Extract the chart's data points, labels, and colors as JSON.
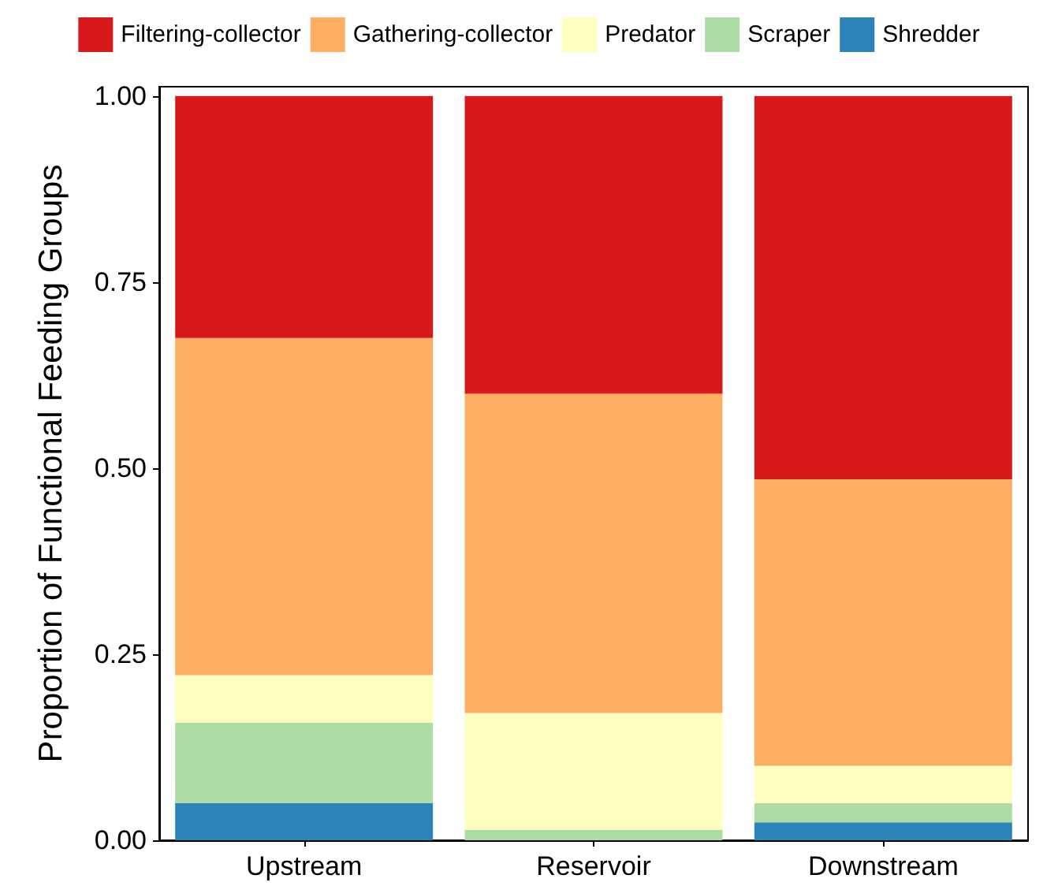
{
  "chart_data": {
    "type": "bar",
    "stacked": true,
    "ylabel": "Proportion of Functional Feeding Groups",
    "categories": [
      "Upstream",
      "Reservoir",
      "Downstream"
    ],
    "series": [
      {
        "name": "Shredder",
        "color": "#2b83ba",
        "values": [
          0.05,
          0,
          0.024
        ]
      },
      {
        "name": "Scraper",
        "color": "#abdda4",
        "values": [
          0.108,
          0.014,
          0.026
        ]
      },
      {
        "name": "Predator",
        "color": "#ffffbf",
        "values": [
          0.064,
          0.157,
          0.05
        ]
      },
      {
        "name": "Gathering-collector",
        "color": "#fdae61",
        "values": [
          0.453,
          0.429,
          0.385
        ]
      },
      {
        "name": "Filtering-collector",
        "color": "#d7191c",
        "values": [
          0.325,
          0.4,
          0.515
        ]
      }
    ],
    "ylim": [
      0,
      1.0125
    ],
    "yticks": [
      {
        "value": 0,
        "label": "0.00"
      },
      {
        "value": 0.25,
        "label": "0.25"
      },
      {
        "value": 0.5,
        "label": "0.50"
      },
      {
        "value": 0.75,
        "label": "0.75"
      },
      {
        "value": 1,
        "label": "1.00"
      }
    ],
    "grid": false,
    "legend": "top"
  }
}
